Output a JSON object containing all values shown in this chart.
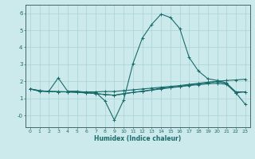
{
  "xlabel": "Humidex (Indice chaleur)",
  "background_color": "#cceaec",
  "grid_color": "#aed6d8",
  "line_color": "#1a6b6b",
  "xlim": [
    -0.5,
    23.5
  ],
  "ylim": [
    -0.7,
    6.5
  ],
  "xticks": [
    0,
    1,
    2,
    3,
    4,
    5,
    6,
    7,
    8,
    9,
    10,
    11,
    12,
    13,
    14,
    15,
    16,
    17,
    18,
    19,
    20,
    21,
    22,
    23
  ],
  "yticks": [
    0,
    1,
    2,
    3,
    4,
    5,
    6
  ],
  "ytick_labels": [
    "-0",
    "1",
    "2",
    "3",
    "4",
    "5",
    "6"
  ],
  "lines": [
    {
      "x": [
        0,
        1,
        2,
        3,
        4,
        5,
        6,
        7,
        8,
        9,
        10,
        11,
        12,
        13,
        14,
        15,
        16,
        17,
        18,
        19,
        20,
        21,
        22,
        23
      ],
      "y": [
        1.55,
        1.42,
        1.42,
        2.2,
        1.42,
        1.42,
        1.35,
        1.35,
        0.85,
        -0.28,
        0.9,
        3.05,
        4.55,
        5.35,
        5.95,
        5.75,
        5.1,
        3.4,
        2.6,
        2.15,
        2.05,
        1.9,
        1.32,
        1.38
      ]
    },
    {
      "x": [
        0,
        1,
        2,
        3,
        4,
        5,
        6,
        7,
        8,
        9,
        10,
        11,
        12,
        13,
        14,
        15,
        16,
        17,
        18,
        19,
        20,
        21,
        22,
        23
      ],
      "y": [
        1.55,
        1.42,
        1.4,
        1.38,
        1.38,
        1.38,
        1.38,
        1.38,
        1.4,
        1.4,
        1.45,
        1.5,
        1.55,
        1.6,
        1.65,
        1.7,
        1.75,
        1.82,
        1.88,
        1.95,
        2.0,
        2.05,
        2.08,
        2.12
      ]
    },
    {
      "x": [
        0,
        1,
        2,
        3,
        4,
        5,
        6,
        7,
        8,
        9,
        10,
        11,
        12,
        13,
        14,
        15,
        16,
        17,
        18,
        19,
        20,
        21,
        22,
        23
      ],
      "y": [
        1.55,
        1.45,
        1.4,
        1.4,
        1.38,
        1.35,
        1.32,
        1.28,
        1.22,
        1.18,
        1.28,
        1.35,
        1.42,
        1.5,
        1.6,
        1.65,
        1.7,
        1.78,
        1.85,
        1.9,
        1.98,
        1.88,
        1.38,
        1.38
      ]
    },
    {
      "x": [
        0,
        1,
        2,
        3,
        4,
        5,
        6,
        7,
        8,
        9,
        10,
        11,
        12,
        13,
        14,
        15,
        16,
        17,
        18,
        19,
        20,
        21,
        22,
        23
      ],
      "y": [
        1.55,
        1.45,
        1.4,
        1.38,
        1.38,
        1.35,
        1.32,
        1.28,
        1.22,
        1.18,
        1.25,
        1.35,
        1.4,
        1.48,
        1.55,
        1.62,
        1.68,
        1.75,
        1.8,
        1.85,
        1.88,
        1.82,
        1.32,
        0.65
      ]
    }
  ]
}
